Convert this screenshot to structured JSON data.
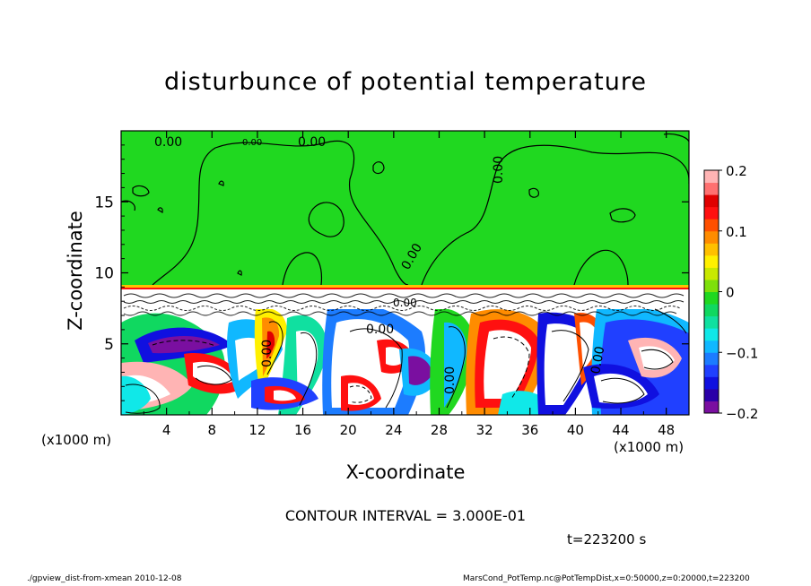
{
  "page": {
    "title": "disturbunce of potential temperature",
    "contour_interval": "CONTOUR INTERVAL = 3.000E-01",
    "time_label": "t=223200 s",
    "footer_left": "./gpview_dist-from-xmean   2010-12-08",
    "footer_right": "MarsCond_PotTemp.nc@PotTempDist,x=0:50000,z=0:20000,t=223200"
  },
  "chart_data": {
    "type": "heatmap",
    "title": "disturbunce of potential temperature",
    "xlabel": "X-coordinate",
    "ylabel": "Z-coordinate",
    "x_unit": "(x1000 m)",
    "y_unit": "(x1000 m)",
    "xlim": [
      0,
      50
    ],
    "ylim": [
      0,
      20
    ],
    "x_ticks": [
      4,
      8,
      12,
      16,
      20,
      24,
      28,
      32,
      36,
      40,
      44,
      48
    ],
    "y_ticks": [
      5,
      10,
      15
    ],
    "contour_labels": [
      "0.00",
      "0.00",
      "0.00",
      "0.00",
      "0.00",
      "0.00",
      "0.00",
      "0.00",
      "0.00",
      "0.00"
    ],
    "colorbar": {
      "range": [
        -0.2,
        0.2
      ],
      "tick_labels": [
        "0.2",
        "0.1",
        "0",
        "−0.1",
        "−0.2"
      ],
      "tick_values": [
        0.2,
        0.1,
        0,
        -0.1,
        -0.2
      ],
      "colors": [
        "#7a0fa0",
        "#2a00a8",
        "#1010e0",
        "#2040ff",
        "#1c7cff",
        "#10b8ff",
        "#10e8e8",
        "#10e0a0",
        "#10d860",
        "#20d820",
        "#7ee00a",
        "#c8e800",
        "#fff000",
        "#ffc000",
        "#ff8c00",
        "#ff5000",
        "#ff1010",
        "#e00000",
        "#ff7070",
        "#ffb4b4"
      ]
    },
    "grid": false
  }
}
